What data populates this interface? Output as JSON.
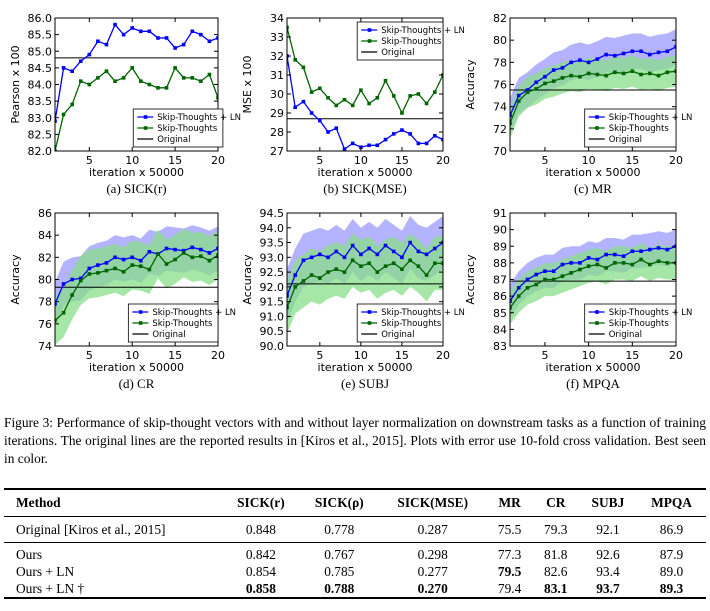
{
  "chart_data": [
    {
      "type": "line",
      "caption": "(a) SICK(r)",
      "xlabel": "iteration x 50000",
      "ylabel": "Pearson x 100",
      "xlim": [
        1,
        20
      ],
      "ylim": [
        82.0,
        86.0
      ],
      "xticks": [
        5,
        10,
        15,
        20
      ],
      "yticks": [
        82.0,
        82.5,
        83.0,
        83.5,
        84.0,
        84.5,
        85.0,
        85.5,
        86.0
      ],
      "legend": "lower-right",
      "legend_box": [
        0.48,
        0.05
      ],
      "original": 84.8,
      "series": [
        {
          "name": "Skip-Thoughts + LN",
          "color": "#0000ff",
          "x": [
            1,
            2,
            3,
            4,
            5,
            6,
            7,
            8,
            9,
            10,
            11,
            12,
            13,
            14,
            15,
            16,
            17,
            18,
            19,
            20
          ],
          "y": [
            82.9,
            84.5,
            84.4,
            84.7,
            84.9,
            85.3,
            85.2,
            85.8,
            85.5,
            85.7,
            85.6,
            85.6,
            85.4,
            85.4,
            85.1,
            85.2,
            85.6,
            85.5,
            85.3,
            85.4
          ]
        },
        {
          "name": "Skip-Thoughts",
          "color": "#006400",
          "x": [
            1,
            2,
            3,
            4,
            5,
            6,
            7,
            8,
            9,
            10,
            11,
            12,
            13,
            14,
            15,
            16,
            17,
            18,
            19,
            20
          ],
          "y": [
            82.0,
            83.1,
            83.4,
            84.1,
            84.0,
            84.2,
            84.4,
            84.1,
            84.2,
            84.5,
            84.1,
            84.0,
            83.9,
            83.9,
            84.5,
            84.2,
            84.2,
            84.1,
            84.3,
            83.6
          ]
        },
        {
          "name": "Original",
          "color": "#000000",
          "original": true
        }
      ]
    },
    {
      "type": "line",
      "caption": "(b) SICK(MSE)",
      "xlabel": "iteration x 50000",
      "ylabel": "MSE x 100",
      "xlim": [
        1,
        20
      ],
      "ylim": [
        27,
        34
      ],
      "xticks": [
        5,
        10,
        15,
        20
      ],
      "yticks": [
        27,
        28,
        29,
        30,
        31,
        32,
        33,
        34
      ],
      "legend": "upper-right",
      "legend_box": [
        0.45,
        0.62
      ],
      "original": 28.7,
      "series": [
        {
          "name": "Skip-Thoughts + LN",
          "color": "#0000ff",
          "x": [
            1,
            2,
            3,
            4,
            5,
            6,
            7,
            8,
            9,
            10,
            11,
            12,
            13,
            14,
            15,
            16,
            17,
            18,
            19,
            20
          ],
          "y": [
            32.0,
            29.3,
            29.6,
            29.0,
            28.6,
            28.0,
            28.2,
            27.1,
            27.4,
            27.2,
            27.3,
            27.3,
            27.6,
            27.9,
            28.1,
            27.9,
            27.4,
            27.4,
            27.8,
            27.6
          ]
        },
        {
          "name": "Skip-Thoughts",
          "color": "#006400",
          "x": [
            1,
            2,
            3,
            4,
            5,
            6,
            7,
            8,
            9,
            10,
            11,
            12,
            13,
            14,
            15,
            16,
            17,
            18,
            19,
            20
          ],
          "y": [
            33.5,
            31.8,
            31.4,
            30.1,
            30.3,
            29.8,
            29.4,
            29.7,
            29.4,
            30.2,
            29.5,
            29.8,
            30.7,
            29.9,
            29.0,
            29.9,
            30.0,
            29.5,
            30.1,
            31.0
          ]
        },
        {
          "name": "Original",
          "color": "#000000",
          "original": true
        }
      ]
    },
    {
      "type": "line",
      "caption": "(c) MR",
      "xlabel": "iteration x 50000",
      "ylabel": "Accuracy",
      "xlim": [
        1,
        20
      ],
      "ylim": [
        70,
        82
      ],
      "xticks": [
        5,
        10,
        15,
        20
      ],
      "yticks": [
        70,
        72,
        74,
        76,
        78,
        80,
        82
      ],
      "legend": "lower-right",
      "legend_box": [
        0.45,
        0.05
      ],
      "original": 75.5,
      "series": [
        {
          "name": "Skip-Thoughts + LN",
          "color": "#0000ff",
          "band": "#9a9aff",
          "band_width": 1.6,
          "x": [
            1,
            2,
            3,
            4,
            5,
            6,
            7,
            8,
            9,
            10,
            11,
            12,
            13,
            14,
            15,
            16,
            17,
            18,
            19,
            20
          ],
          "y": [
            73.2,
            75.0,
            75.5,
            76.2,
            76.7,
            77.3,
            77.5,
            78.0,
            78.2,
            78.0,
            78.3,
            78.7,
            78.6,
            78.8,
            79.0,
            79.0,
            78.7,
            78.9,
            79.0,
            79.4
          ]
        },
        {
          "name": "Skip-Thoughts",
          "color": "#006400",
          "band": "#88dd88",
          "band_width": 1.4,
          "x": [
            1,
            2,
            3,
            4,
            5,
            6,
            7,
            8,
            9,
            10,
            11,
            12,
            13,
            14,
            15,
            16,
            17,
            18,
            19,
            20
          ],
          "y": [
            72.5,
            74.5,
            75.3,
            75.6,
            76.1,
            76.3,
            76.6,
            76.8,
            76.7,
            77.0,
            76.9,
            76.8,
            77.1,
            77.0,
            77.2,
            76.9,
            77.0,
            76.8,
            77.1,
            77.2
          ]
        },
        {
          "name": "Original",
          "color": "#000000",
          "original": true
        }
      ]
    },
    {
      "type": "line",
      "caption": "(d) CR",
      "xlabel": "iteration x 50000",
      "ylabel": "Accuracy",
      "xlim": [
        1,
        20
      ],
      "ylim": [
        74,
        86
      ],
      "xticks": [
        5,
        10,
        15,
        20
      ],
      "yticks": [
        74,
        76,
        78,
        80,
        82,
        84,
        86
      ],
      "legend": "lower-right",
      "legend_box": [
        0.45,
        0.05
      ],
      "original": 79.3,
      "series": [
        {
          "name": "Skip-Thoughts + LN",
          "color": "#0000ff",
          "band": "#9a9aff",
          "band_width": 2.0,
          "x": [
            1,
            2,
            3,
            4,
            5,
            6,
            7,
            8,
            9,
            10,
            11,
            12,
            13,
            14,
            15,
            16,
            17,
            18,
            19,
            20
          ],
          "y": [
            77.8,
            79.6,
            80.0,
            80.1,
            81.0,
            81.3,
            81.5,
            82.0,
            81.8,
            82.0,
            81.7,
            82.5,
            82.3,
            82.8,
            82.7,
            82.6,
            82.9,
            82.7,
            82.4,
            82.8
          ]
        },
        {
          "name": "Skip-Thoughts",
          "color": "#006400",
          "band": "#88dd88",
          "band_width": 2.2,
          "x": [
            1,
            2,
            3,
            4,
            5,
            6,
            7,
            8,
            9,
            10,
            11,
            12,
            13,
            14,
            15,
            16,
            17,
            18,
            19,
            20
          ],
          "y": [
            76.3,
            77.0,
            78.6,
            79.9,
            80.5,
            80.6,
            80.8,
            81.0,
            80.7,
            81.3,
            81.2,
            80.9,
            82.3,
            81.4,
            81.8,
            82.4,
            82.0,
            82.1,
            81.7,
            82.2
          ]
        },
        {
          "name": "Original",
          "color": "#000000",
          "original": true
        }
      ]
    },
    {
      "type": "line",
      "caption": "(e) SUBJ",
      "xlabel": "iteration x 50000",
      "ylabel": "Accuracy",
      "xlim": [
        1,
        20
      ],
      "ylim": [
        90.0,
        94.5
      ],
      "xticks": [
        5,
        10,
        15,
        20
      ],
      "yticks": [
        90.0,
        90.5,
        91.0,
        91.5,
        92.0,
        92.5,
        93.0,
        93.5,
        94.0,
        94.5
      ],
      "legend": "lower-right",
      "legend_box": [
        0.45,
        0.05
      ],
      "original": 92.1,
      "series": [
        {
          "name": "Skip-Thoughts + LN",
          "color": "#0000ff",
          "band": "#9a9aff",
          "band_width": 0.9,
          "x": [
            1,
            2,
            3,
            4,
            5,
            6,
            7,
            8,
            9,
            10,
            11,
            12,
            13,
            14,
            15,
            16,
            17,
            18,
            19,
            20
          ],
          "y": [
            91.7,
            92.4,
            92.9,
            93.0,
            93.1,
            93.0,
            93.2,
            93.0,
            93.4,
            93.1,
            93.3,
            93.1,
            93.4,
            93.2,
            93.0,
            93.5,
            93.2,
            93.1,
            93.3,
            93.5
          ]
        },
        {
          "name": "Skip-Thoughts",
          "color": "#006400",
          "band": "#88dd88",
          "band_width": 0.9,
          "x": [
            1,
            2,
            3,
            4,
            5,
            6,
            7,
            8,
            9,
            10,
            11,
            12,
            13,
            14,
            15,
            16,
            17,
            18,
            19,
            20
          ],
          "y": [
            91.3,
            92.0,
            92.2,
            92.4,
            92.3,
            92.5,
            92.6,
            92.5,
            92.9,
            92.7,
            92.8,
            92.5,
            92.7,
            92.8,
            92.6,
            92.9,
            92.7,
            92.4,
            92.8,
            92.8
          ]
        },
        {
          "name": "Original",
          "color": "#000000",
          "original": true
        }
      ]
    },
    {
      "type": "line",
      "caption": "(f) MPQA",
      "xlabel": "iteration x 50000",
      "ylabel": "Accuracy",
      "xlim": [
        1,
        20
      ],
      "ylim": [
        83,
        91
      ],
      "xticks": [
        5,
        10,
        15,
        20
      ],
      "yticks": [
        83,
        84,
        85,
        86,
        87,
        88,
        89,
        90,
        91
      ],
      "legend": "lower-right",
      "legend_box": [
        0.45,
        0.05
      ],
      "original": 86.9,
      "series": [
        {
          "name": "Skip-Thoughts + LN",
          "color": "#0000ff",
          "band": "#9a9aff",
          "band_width": 1.0,
          "x": [
            1,
            2,
            3,
            4,
            5,
            6,
            7,
            8,
            9,
            10,
            11,
            12,
            13,
            14,
            15,
            16,
            17,
            18,
            19,
            20
          ],
          "y": [
            85.7,
            86.5,
            87.0,
            87.3,
            87.5,
            87.5,
            87.9,
            88.0,
            88.0,
            88.3,
            88.2,
            88.5,
            88.5,
            88.4,
            88.7,
            88.7,
            88.8,
            88.9,
            88.8,
            89.0
          ]
        },
        {
          "name": "Skip-Thoughts",
          "color": "#006400",
          "band": "#88dd88",
          "band_width": 1.0,
          "x": [
            1,
            2,
            3,
            4,
            5,
            6,
            7,
            8,
            9,
            10,
            11,
            12,
            13,
            14,
            15,
            16,
            17,
            18,
            19,
            20
          ],
          "y": [
            85.3,
            86.0,
            86.5,
            86.7,
            87.0,
            87.0,
            87.2,
            87.4,
            87.6,
            87.8,
            87.9,
            87.7,
            88.0,
            88.0,
            87.9,
            88.2,
            87.9,
            88.1,
            88.0,
            88.0
          ]
        },
        {
          "name": "Original",
          "color": "#000000",
          "original": true
        }
      ]
    }
  ],
  "figure_caption": "Figure 3: Performance of skip-thought vectors with and without layer normalization on downstream tasks as a function of training iterations. The original lines are the reported results in [Kiros et al., 2015]. Plots with error use 10-fold cross validation. Best seen in color.",
  "table": {
    "headers": [
      "Method",
      "SICK(r)",
      "SICK(ρ)",
      "SICK(MSE)",
      "MR",
      "CR",
      "SUBJ",
      "MPQA"
    ],
    "rows": [
      {
        "cells": [
          "Original [Kiros et al., 2015]",
          "0.848",
          "0.778",
          "0.287",
          "75.5",
          "79.3",
          "92.1",
          "86.9"
        ],
        "bold": []
      },
      {
        "cells": [
          "Ours",
          "0.842",
          "0.767",
          "0.298",
          "77.3",
          "81.8",
          "92.6",
          "87.9"
        ],
        "bold": []
      },
      {
        "cells": [
          "Ours + LN",
          "0.854",
          "0.785",
          "0.277",
          "79.5",
          "82.6",
          "93.4",
          "89.0"
        ],
        "bold": [
          4
        ]
      },
      {
        "cells": [
          "Ours + LN †",
          "0.858",
          "0.788",
          "0.270",
          "79.4",
          "83.1",
          "93.7",
          "89.3"
        ],
        "bold": [
          1,
          2,
          3,
          5,
          6,
          7
        ]
      }
    ]
  }
}
